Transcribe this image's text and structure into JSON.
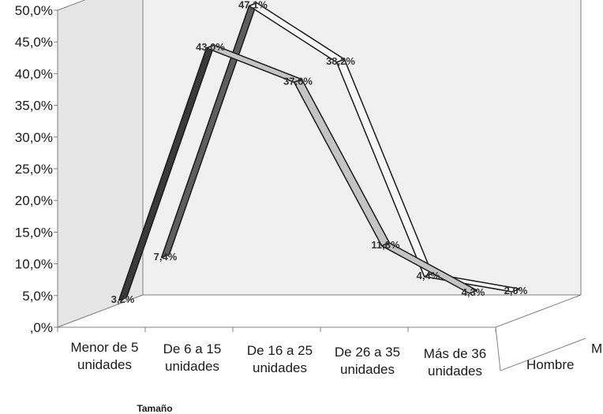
{
  "chart_data": {
    "type": "line",
    "subtype": "3d-ribbon",
    "xlabel": "Tamaño",
    "categories": [
      "Menor de 5 unidades",
      "De 6 a 15 unidades",
      "De 16 a 25 unidades",
      "De 26 a 35 unidades",
      "Más de 36 unidades"
    ],
    "y_ticks": [
      ",0%",
      "5,0%",
      "10,0%",
      "15,0%",
      "20,0%",
      "25,0%",
      "30,0%",
      "35,0%",
      "40,0%",
      "45,0%",
      "50,0%"
    ],
    "ylim": [
      0,
      50
    ],
    "grid": false,
    "series": [
      {
        "name": "Hombre",
        "values": [
          3.2,
          43.0,
          37.6,
          11.8,
          4.3
        ],
        "labels": [
          "3,2%",
          "43,0%",
          "37,6%",
          "11,8%",
          "4,3%"
        ],
        "colors": {
          "face": "#c4c4c4",
          "first_face": "#3a3a3a"
        }
      },
      {
        "name": "Mujer",
        "values": [
          7.4,
          47.1,
          38.2,
          4.4,
          2.0
        ],
        "labels": [
          "7,4%",
          "47,1%",
          "38,2%",
          "4,4%",
          "2,0%"
        ],
        "colors": {
          "face": "#f7f7f7",
          "first_face": "#5e5e5e"
        }
      }
    ]
  }
}
